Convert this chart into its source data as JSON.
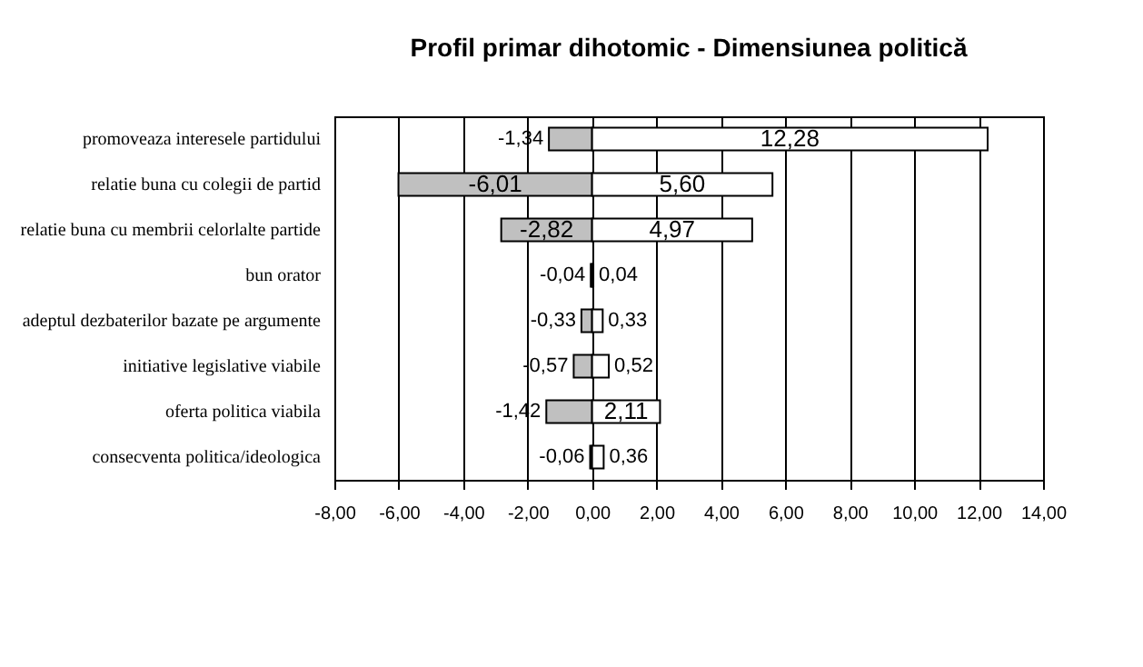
{
  "chart_data": {
    "type": "bar",
    "orientation": "horizontal",
    "title": "Profil primar dihotomic - Dimensiunea politică",
    "categories": [
      "promoveaza interesele partidului",
      "relatie buna cu colegii de partid",
      "relatie buna cu membrii celorlalte partide",
      "bun orator",
      "adeptul dezbaterilor bazate pe argumente",
      "initiative legislative viabile",
      "oferta politica viabila",
      "consecventa politica/ideologica"
    ],
    "series": [
      {
        "color": "#c0c0c0",
        "values": [
          -1.34,
          -6.01,
          -2.82,
          -0.04,
          -0.33,
          -0.57,
          -1.42,
          -0.06
        ],
        "value_labels": [
          "-1,34",
          "-6,01",
          "-2,82",
          "-0,04",
          "-0,33",
          "-0,57",
          "-1,42",
          "-0,06"
        ]
      },
      {
        "color": "#ffffff",
        "values": [
          12.28,
          5.6,
          4.97,
          0.04,
          0.33,
          0.52,
          2.11,
          0.36
        ],
        "value_labels": [
          "12,28",
          "5,60",
          "4,97",
          "0,04",
          "0,33",
          "0,52",
          "2,11",
          "0,36"
        ]
      }
    ],
    "xlim": [
      -8,
      14
    ],
    "xticks": [
      {
        "value": -8,
        "label": "-8,00"
      },
      {
        "value": -6,
        "label": "-6,00"
      },
      {
        "value": -4,
        "label": "-4,00"
      },
      {
        "value": -2,
        "label": "-2,00"
      },
      {
        "value": 0,
        "label": "0,00"
      },
      {
        "value": 2,
        "label": "2,00"
      },
      {
        "value": 4,
        "label": "4,00"
      },
      {
        "value": 6,
        "label": "6,00"
      },
      {
        "value": 8,
        "label": "8,00"
      },
      {
        "value": 10,
        "label": "10,00"
      },
      {
        "value": 12,
        "label": "12,00"
      },
      {
        "value": 14,
        "label": "14,00"
      }
    ],
    "grid": true,
    "stacked": true
  }
}
